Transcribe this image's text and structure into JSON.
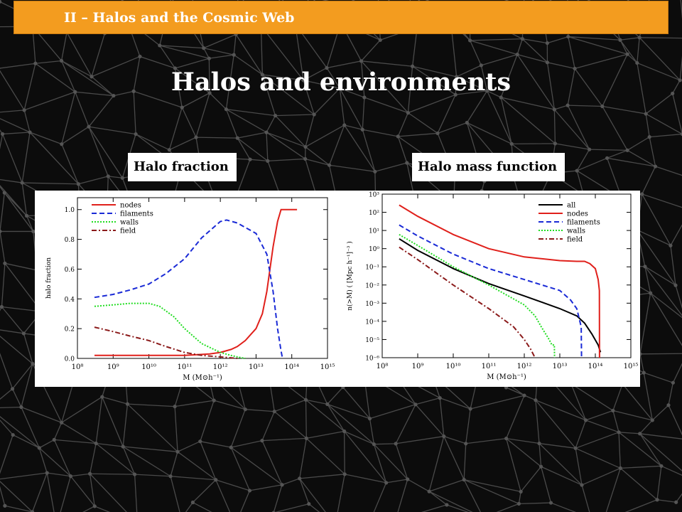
{
  "header": {
    "section": "II – Halos and the Cosmic Web"
  },
  "slide": {
    "title": "Halos and environments"
  },
  "panels": {
    "left_label": "Halo fraction",
    "right_label": "Halo mass function"
  },
  "colors": {
    "header": "#f39c1f",
    "nodes": "#e0201b",
    "filaments": "#1a2ad6",
    "walls": "#22dd22",
    "field": "#8b1a1a",
    "all": "#000000"
  },
  "chart_data": [
    {
      "type": "line",
      "xlabel": "M (M⊙h⁻¹)",
      "ylabel": "halo fraction",
      "xscale": "log",
      "xlim": [
        100000000.0,
        1000000000000000.0
      ],
      "ylim": [
        0,
        1.08
      ],
      "xticks": [
        "10⁸",
        "10⁹",
        "10¹⁰",
        "10¹¹",
        "10¹²",
        "10¹³",
        "10¹⁴",
        "10¹⁵"
      ],
      "yticks": [
        "0.0",
        "0.2",
        "0.4",
        "0.6",
        "0.8",
        "1.0"
      ],
      "legend": "top-left",
      "series": [
        {
          "name": "nodes",
          "style": "solid",
          "color": "#e0201b",
          "x": [
            300000000.0,
            1000000000.0,
            10000000000.0,
            100000000000.0,
            500000000000.0,
            1000000000000.0,
            2000000000000.0,
            3000000000000.0,
            5000000000000.0,
            10000000000000.0,
            15000000000000.0,
            20000000000000.0,
            30000000000000.0,
            40000000000000.0,
            50000000000000.0,
            60000000000000.0,
            100000000000000.0,
            140000000000000.0
          ],
          "y": [
            0.02,
            0.02,
            0.02,
            0.02,
            0.03,
            0.04,
            0.06,
            0.08,
            0.12,
            0.2,
            0.3,
            0.45,
            0.75,
            0.92,
            1.0,
            1.0,
            1.0,
            1.0
          ]
        },
        {
          "name": "filaments",
          "style": "dashed",
          "color": "#1a2ad6",
          "x": [
            300000000.0,
            1000000000.0,
            3000000000.0,
            10000000000.0,
            30000000000.0,
            100000000000.0,
            300000000000.0,
            1000000000000.0,
            1500000000000.0,
            3000000000000.0,
            5000000000000.0,
            10000000000000.0,
            20000000000000.0,
            30000000000000.0,
            40000000000000.0,
            50000000000000.0,
            55000000000000.0
          ],
          "y": [
            0.41,
            0.43,
            0.46,
            0.5,
            0.57,
            0.67,
            0.81,
            0.92,
            0.93,
            0.91,
            0.88,
            0.84,
            0.7,
            0.45,
            0.2,
            0.05,
            0.0
          ]
        },
        {
          "name": "walls",
          "style": "dotted",
          "color": "#22dd22",
          "x": [
            300000000.0,
            1000000000.0,
            3000000000.0,
            10000000000.0,
            20000000000.0,
            50000000000.0,
            100000000000.0,
            300000000000.0,
            1000000000000.0,
            2000000000000.0,
            3000000000000.0,
            5000000000000.0
          ],
          "y": [
            0.35,
            0.36,
            0.37,
            0.37,
            0.35,
            0.28,
            0.2,
            0.1,
            0.04,
            0.02,
            0.01,
            0.0
          ]
        },
        {
          "name": "field",
          "style": "dashdot",
          "color": "#8b1a1a",
          "x": [
            300000000.0,
            1000000000.0,
            3000000000.0,
            10000000000.0,
            30000000000.0,
            100000000000.0,
            300000000000.0,
            1000000000000.0,
            3000000000000.0
          ],
          "y": [
            0.21,
            0.18,
            0.15,
            0.12,
            0.08,
            0.04,
            0.02,
            0.01,
            0.0
          ]
        }
      ]
    },
    {
      "type": "line",
      "xlabel": "M (M⊙h⁻¹)",
      "ylabel": "n(>M)  ( [Mpc h⁻¹]⁻³ )",
      "xscale": "log",
      "yscale": "log",
      "xlim": [
        100000000.0,
        1000000000000000.0
      ],
      "ylim": [
        1e-06,
        1000.0
      ],
      "xticks": [
        "10⁸",
        "10⁹",
        "10¹⁰",
        "10¹¹",
        "10¹²",
        "10¹³",
        "10¹⁴",
        "10¹⁵"
      ],
      "yticks": [
        "10⁻⁶",
        "10⁻⁵",
        "10⁻⁴",
        "10⁻³",
        "10⁻²",
        "10⁻¹",
        "10⁰",
        "10¹",
        "10²",
        "10³"
      ],
      "legend": "top-right",
      "series": [
        {
          "name": "all",
          "style": "solid",
          "color": "#000000",
          "x": [
            300000000.0,
            1000000000.0,
            10000000000.0,
            100000000000.0,
            1000000000000.0,
            10000000000000.0,
            30000000000000.0,
            50000000000000.0,
            80000000000000.0,
            120000000000000.0,
            140000000000000.0
          ],
          "y": [
            3.5,
            0.8,
            0.08,
            0.012,
            0.0025,
            0.0005,
            0.0002,
            8e-05,
            2e-05,
            5e-06,
            2e-06
          ]
        },
        {
          "name": "nodes",
          "style": "solid",
          "color": "#e0201b",
          "x": [
            300000000.0,
            1000000000.0,
            10000000000.0,
            100000000000.0,
            1000000000000.0,
            10000000000000.0,
            30000000000000.0,
            50000000000000.0,
            70000000000000.0,
            100000000000000.0,
            120000000000000.0,
            130000000000000.0,
            131000000000000.0
          ],
          "y": [
            250,
            60,
            6,
            1,
            0.35,
            0.22,
            0.2,
            0.2,
            0.15,
            0.08,
            0.02,
            0.005,
            1e-06
          ]
        },
        {
          "name": "filaments",
          "style": "dashed",
          "color": "#1a2ad6",
          "x": [
            300000000.0,
            1000000000.0,
            10000000000.0,
            100000000000.0,
            1000000000000.0,
            10000000000000.0,
            20000000000000.0,
            30000000000000.0,
            40000000000000.0,
            41000000000000.0
          ],
          "y": [
            20,
            5,
            0.5,
            0.08,
            0.02,
            0.005,
            0.0015,
            0.0005,
            5e-05,
            1e-06
          ]
        },
        {
          "name": "walls",
          "style": "dotted",
          "color": "#22dd22",
          "x": [
            300000000.0,
            1000000000.0,
            10000000000.0,
            100000000000.0,
            1000000000000.0,
            2000000000000.0,
            3000000000000.0,
            5000000000000.0,
            6000000000000.0,
            7000000000000.0,
            7100000000000.0
          ],
          "y": [
            6,
            1.5,
            0.1,
            0.01,
            0.0008,
            0.0002,
            5e-05,
            1e-05,
            5e-06,
            5e-06,
            1e-06
          ]
        },
        {
          "name": "field",
          "style": "dashdot",
          "color": "#8b1a1a",
          "x": [
            300000000.0,
            1000000000.0,
            10000000000.0,
            100000000000.0,
            500000000000.0,
            1000000000000.0,
            1500000000000.0,
            2000000000000.0
          ],
          "y": [
            1.2,
            0.25,
            0.01,
            0.0005,
            5e-05,
            1e-05,
            3e-06,
            1e-06
          ]
        }
      ]
    }
  ]
}
